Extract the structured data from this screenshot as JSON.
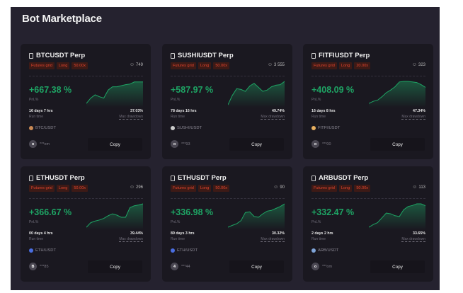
{
  "page": {
    "title": "Bot Marketplace"
  },
  "colors": {
    "panel": "#25222f",
    "card": "#1a1820",
    "profit": "#1ea464",
    "tag_text": "#e0452e",
    "tag_bg": "#3d1a16"
  },
  "cards": [
    {
      "name": "BTCUSDT Perp",
      "tags": [
        "Futures grid",
        "Long",
        "50.00x"
      ],
      "users": "749",
      "pnl": "+667.38 %",
      "pnl_label": "PnL%",
      "runtime": "16 days 7 hrs",
      "runtime_label": "Run time",
      "max_drawdown": "37.03%",
      "max_drawdown_label": "Max drawdown",
      "pair": "BTC/USDT",
      "coin_color": "#c98a55",
      "avatar": "o",
      "user": "***om",
      "copy_label": "Copy",
      "sparkline": [
        10,
        30,
        42,
        35,
        30,
        60,
        72,
        72,
        76,
        80,
        82,
        90,
        90,
        90
      ]
    },
    {
      "name": "SUSHIUSDT Perp",
      "tags": [
        "Futures grid",
        "Long",
        "50.00x"
      ],
      "users": "3 555",
      "pnl": "+587.97 %",
      "pnl_label": "PnL%",
      "runtime": "78 days 16 hrs",
      "runtime_label": "Run time",
      "max_drawdown": "49.74%",
      "max_drawdown_label": "Max drawdown",
      "pair": "SUSHI/USDT",
      "coin_color": "#cccccc",
      "avatar": "o",
      "user": "***93",
      "copy_label": "Copy",
      "sparkline": [
        5,
        40,
        65,
        62,
        55,
        75,
        85,
        70,
        55,
        60,
        72,
        78,
        80,
        92
      ]
    },
    {
      "name": "FITFIUSDT Perp",
      "tags": [
        "Futures grid",
        "Long",
        "20.00x"
      ],
      "users": "323",
      "pnl": "+408.09 %",
      "pnl_label": "PnL%",
      "runtime": "16 days 8 hrs",
      "runtime_label": "Run time",
      "max_drawdown": "47.34%",
      "max_drawdown_label": "Max drawdown",
      "pair": "FITFI/USDT",
      "coin_color": "#e8b060",
      "avatar": "o",
      "user": "***00",
      "copy_label": "Copy",
      "sparkline": [
        10,
        18,
        22,
        35,
        50,
        60,
        72,
        90,
        92,
        92,
        90,
        88,
        80,
        70
      ]
    },
    {
      "name": "ETHUSDT Perp",
      "tags": [
        "Futures grid",
        "Long",
        "50.00x"
      ],
      "users": "296",
      "pnl": "+366.67 %",
      "pnl_label": "PnL%",
      "runtime": "00 days 4 hrs",
      "runtime_label": "Run time",
      "max_drawdown": "39.44%",
      "max_drawdown_label": "Max drawdown",
      "pair": "ETH/USDT",
      "coin_color": "#4a6ee0",
      "avatar": "B",
      "user": "***85",
      "copy_label": "Copy",
      "sparkline": [
        5,
        22,
        28,
        32,
        38,
        48,
        55,
        50,
        42,
        42,
        78,
        85,
        88,
        92
      ]
    },
    {
      "name": "ETHUSDT Perp",
      "tags": [
        "Futures grid",
        "Long",
        "50.00x"
      ],
      "users": "90",
      "pnl": "+336.98 %",
      "pnl_label": "PnL%",
      "runtime": "89 days 3 hrs",
      "runtime_label": "Run time",
      "max_drawdown": "30.32%",
      "max_drawdown_label": "Max drawdown",
      "pair": "ETH/USDT",
      "coin_color": "#4a6ee0",
      "avatar": "4",
      "user": "***44",
      "copy_label": "Copy",
      "sparkline": [
        5,
        12,
        18,
        30,
        60,
        62,
        45,
        42,
        55,
        65,
        68,
        75,
        82,
        92
      ]
    },
    {
      "name": "ARBUSDT Perp",
      "tags": [
        "Futures grid",
        "Long",
        "50.00x"
      ],
      "users": "113",
      "pnl": "+332.47 %",
      "pnl_label": "PnL%",
      "runtime": "2 days 2 hrs",
      "runtime_label": "Run time",
      "max_drawdown": "33.65%",
      "max_drawdown_label": "Max drawdown",
      "pair": "ARB/USDT",
      "coin_color": "#7fa4d8",
      "avatar": "o",
      "user": "***om",
      "copy_label": "Copy",
      "sparkline": [
        5,
        15,
        22,
        40,
        58,
        55,
        48,
        45,
        70,
        82,
        86,
        92,
        92,
        85
      ]
    }
  ]
}
